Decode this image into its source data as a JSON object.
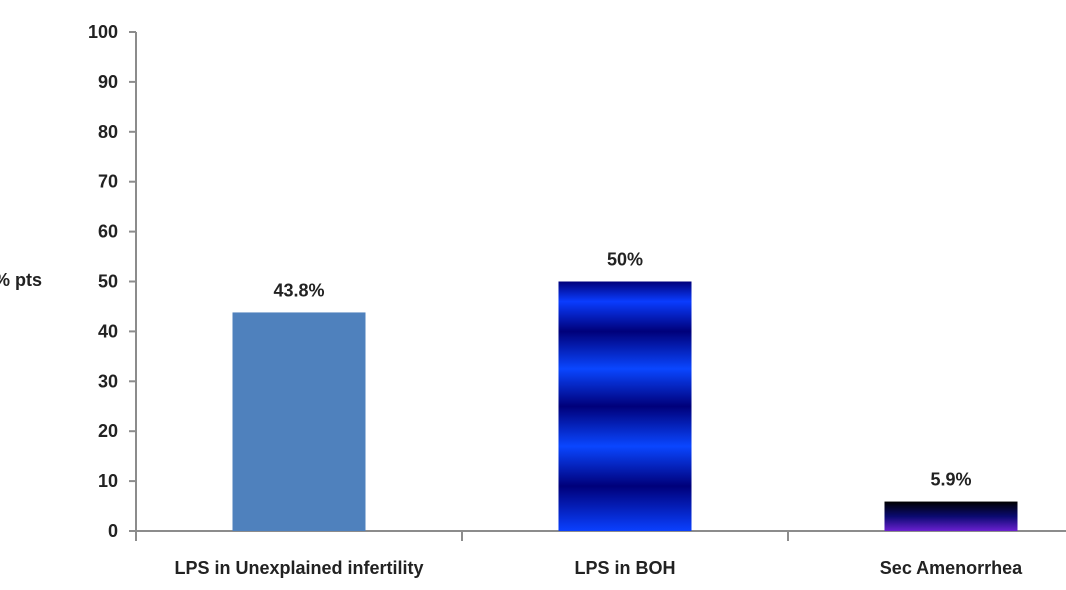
{
  "chart_data": {
    "type": "bar",
    "title": "",
    "xlabel": "",
    "ylabel": "% pts",
    "ylim": [
      0,
      100
    ],
    "yticks": [
      0,
      10,
      20,
      30,
      40,
      50,
      60,
      70,
      80,
      90,
      100
    ],
    "grid": false,
    "categories": [
      "LPS in Unexplained infertility",
      "LPS in BOH",
      "Sec Amenorrhea"
    ],
    "values": [
      43.8,
      50,
      5.9
    ],
    "data_labels": [
      "43.8%",
      "50%",
      "5.9%"
    ],
    "colors": [
      "#4f81bd",
      "#0a3cff",
      "#3a1aa0"
    ]
  }
}
